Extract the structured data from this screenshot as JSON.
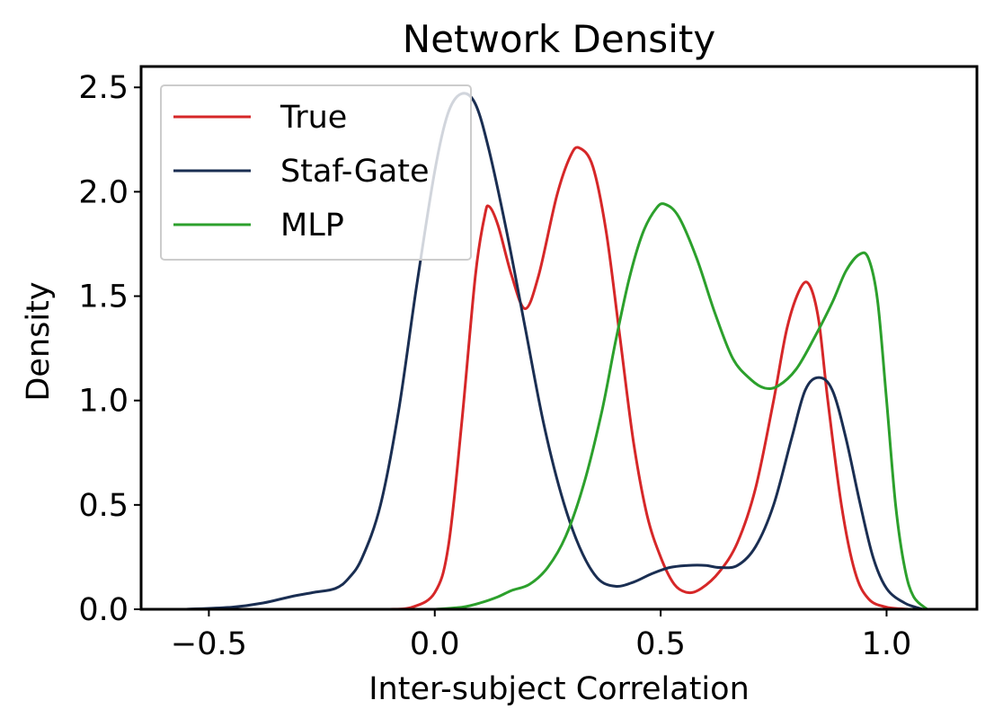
{
  "chart_data": {
    "type": "line",
    "title": "Network Density",
    "xlabel": "Inter-subject Correlation",
    "ylabel": "Density",
    "xlim": [
      -0.65,
      1.2
    ],
    "ylim": [
      0,
      2.6
    ],
    "xticks": [
      -0.5,
      0.0,
      0.5,
      1.0
    ],
    "xtick_labels": [
      "−0.5",
      "0.0",
      "0.5",
      "1.0"
    ],
    "yticks": [
      0.0,
      0.5,
      1.0,
      1.5,
      2.0,
      2.5
    ],
    "ytick_labels": [
      "0.0",
      "0.5",
      "1.0",
      "1.5",
      "2.0",
      "2.5"
    ],
    "grid": false,
    "legend": "top-left",
    "series": [
      {
        "name": "True",
        "color": "#d62728",
        "points": [
          [
            -0.1,
            0.0
          ],
          [
            -0.05,
            0.01
          ],
          [
            0.0,
            0.08
          ],
          [
            0.03,
            0.3
          ],
          [
            0.06,
            0.9
          ],
          [
            0.09,
            1.6
          ],
          [
            0.11,
            1.88
          ],
          [
            0.12,
            1.93
          ],
          [
            0.14,
            1.84
          ],
          [
            0.17,
            1.6
          ],
          [
            0.2,
            1.44
          ],
          [
            0.23,
            1.6
          ],
          [
            0.27,
            1.98
          ],
          [
            0.3,
            2.17
          ],
          [
            0.32,
            2.21
          ],
          [
            0.35,
            2.12
          ],
          [
            0.38,
            1.8
          ],
          [
            0.41,
            1.3
          ],
          [
            0.44,
            0.8
          ],
          [
            0.47,
            0.45
          ],
          [
            0.5,
            0.25
          ],
          [
            0.53,
            0.12
          ],
          [
            0.56,
            0.08
          ],
          [
            0.59,
            0.1
          ],
          [
            0.63,
            0.18
          ],
          [
            0.67,
            0.32
          ],
          [
            0.71,
            0.58
          ],
          [
            0.75,
            1.0
          ],
          [
            0.78,
            1.35
          ],
          [
            0.81,
            1.54
          ],
          [
            0.83,
            1.55
          ],
          [
            0.85,
            1.38
          ],
          [
            0.87,
            1.0
          ],
          [
            0.9,
            0.5
          ],
          [
            0.93,
            0.18
          ],
          [
            0.96,
            0.05
          ],
          [
            1.0,
            0.01
          ],
          [
            1.05,
            0.0
          ]
        ]
      },
      {
        "name": "Staf-Gate",
        "color": "#1a2e52",
        "points": [
          [
            -0.55,
            0.0
          ],
          [
            -0.45,
            0.01
          ],
          [
            -0.38,
            0.03
          ],
          [
            -0.32,
            0.06
          ],
          [
            -0.27,
            0.08
          ],
          [
            -0.22,
            0.1
          ],
          [
            -0.19,
            0.15
          ],
          [
            -0.16,
            0.25
          ],
          [
            -0.12,
            0.5
          ],
          [
            -0.08,
            0.95
          ],
          [
            -0.04,
            1.55
          ],
          [
            0.0,
            2.1
          ],
          [
            0.03,
            2.38
          ],
          [
            0.06,
            2.47
          ],
          [
            0.09,
            2.42
          ],
          [
            0.12,
            2.2
          ],
          [
            0.16,
            1.8
          ],
          [
            0.2,
            1.35
          ],
          [
            0.24,
            0.9
          ],
          [
            0.28,
            0.55
          ],
          [
            0.32,
            0.3
          ],
          [
            0.36,
            0.15
          ],
          [
            0.4,
            0.11
          ],
          [
            0.44,
            0.13
          ],
          [
            0.48,
            0.17
          ],
          [
            0.52,
            0.2
          ],
          [
            0.56,
            0.21
          ],
          [
            0.6,
            0.21
          ],
          [
            0.63,
            0.2
          ],
          [
            0.67,
            0.21
          ],
          [
            0.71,
            0.3
          ],
          [
            0.75,
            0.5
          ],
          [
            0.79,
            0.82
          ],
          [
            0.82,
            1.05
          ],
          [
            0.85,
            1.11
          ],
          [
            0.88,
            1.05
          ],
          [
            0.91,
            0.82
          ],
          [
            0.94,
            0.52
          ],
          [
            0.97,
            0.25
          ],
          [
            1.0,
            0.1
          ],
          [
            1.04,
            0.03
          ],
          [
            1.08,
            0.0
          ]
        ]
      },
      {
        "name": "MLP",
        "color": "#2ca02c",
        "points": [
          [
            0.0,
            0.0
          ],
          [
            0.06,
            0.01
          ],
          [
            0.1,
            0.03
          ],
          [
            0.14,
            0.06
          ],
          [
            0.17,
            0.09
          ],
          [
            0.21,
            0.12
          ],
          [
            0.25,
            0.2
          ],
          [
            0.29,
            0.35
          ],
          [
            0.33,
            0.6
          ],
          [
            0.37,
            0.95
          ],
          [
            0.4,
            1.28
          ],
          [
            0.43,
            1.58
          ],
          [
            0.46,
            1.8
          ],
          [
            0.49,
            1.92
          ],
          [
            0.51,
            1.94
          ],
          [
            0.54,
            1.88
          ],
          [
            0.58,
            1.68
          ],
          [
            0.62,
            1.42
          ],
          [
            0.66,
            1.2
          ],
          [
            0.7,
            1.1
          ],
          [
            0.73,
            1.06
          ],
          [
            0.76,
            1.07
          ],
          [
            0.8,
            1.15
          ],
          [
            0.84,
            1.3
          ],
          [
            0.88,
            1.47
          ],
          [
            0.91,
            1.62
          ],
          [
            0.94,
            1.7
          ],
          [
            0.96,
            1.68
          ],
          [
            0.98,
            1.48
          ],
          [
            1.0,
            1.0
          ],
          [
            1.02,
            0.5
          ],
          [
            1.04,
            0.2
          ],
          [
            1.06,
            0.06
          ],
          [
            1.09,
            0.0
          ]
        ]
      }
    ]
  }
}
